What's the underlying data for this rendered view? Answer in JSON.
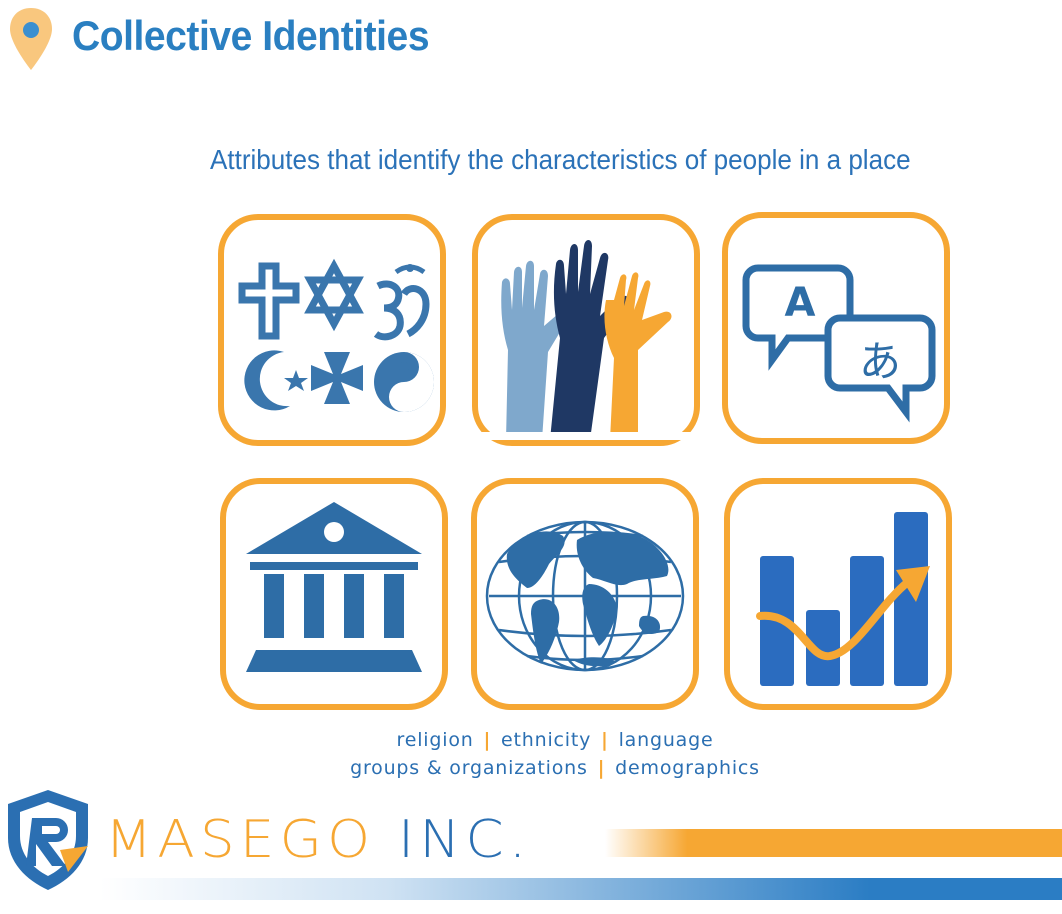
{
  "header": {
    "title": "Collective Identities",
    "subtitle": "Attributes that identify the characteristics of people in a place"
  },
  "tiles": [
    {
      "icon": "religious-symbols-icon"
    },
    {
      "icon": "raised-hands-icon"
    },
    {
      "icon": "translation-bubbles-icon",
      "letter_a": "A",
      "letter_b": "あ"
    },
    {
      "icon": "institution-building-icon"
    },
    {
      "icon": "globe-icon"
    },
    {
      "icon": "bar-chart-trend-icon"
    }
  ],
  "captions": {
    "line1": [
      "religion",
      "ethnicity",
      "language"
    ],
    "line2": [
      "groups & organizations",
      "demographics"
    ],
    "separator": "|"
  },
  "footer": {
    "brand_word1": "MASEGO",
    "brand_word2": "INC."
  },
  "colors": {
    "title_blue": "#2a7fc1",
    "icon_blue": "#2e6da6",
    "accent_orange": "#f6a733",
    "navy": "#1f3864",
    "light_blue": "#7fa8cc"
  }
}
